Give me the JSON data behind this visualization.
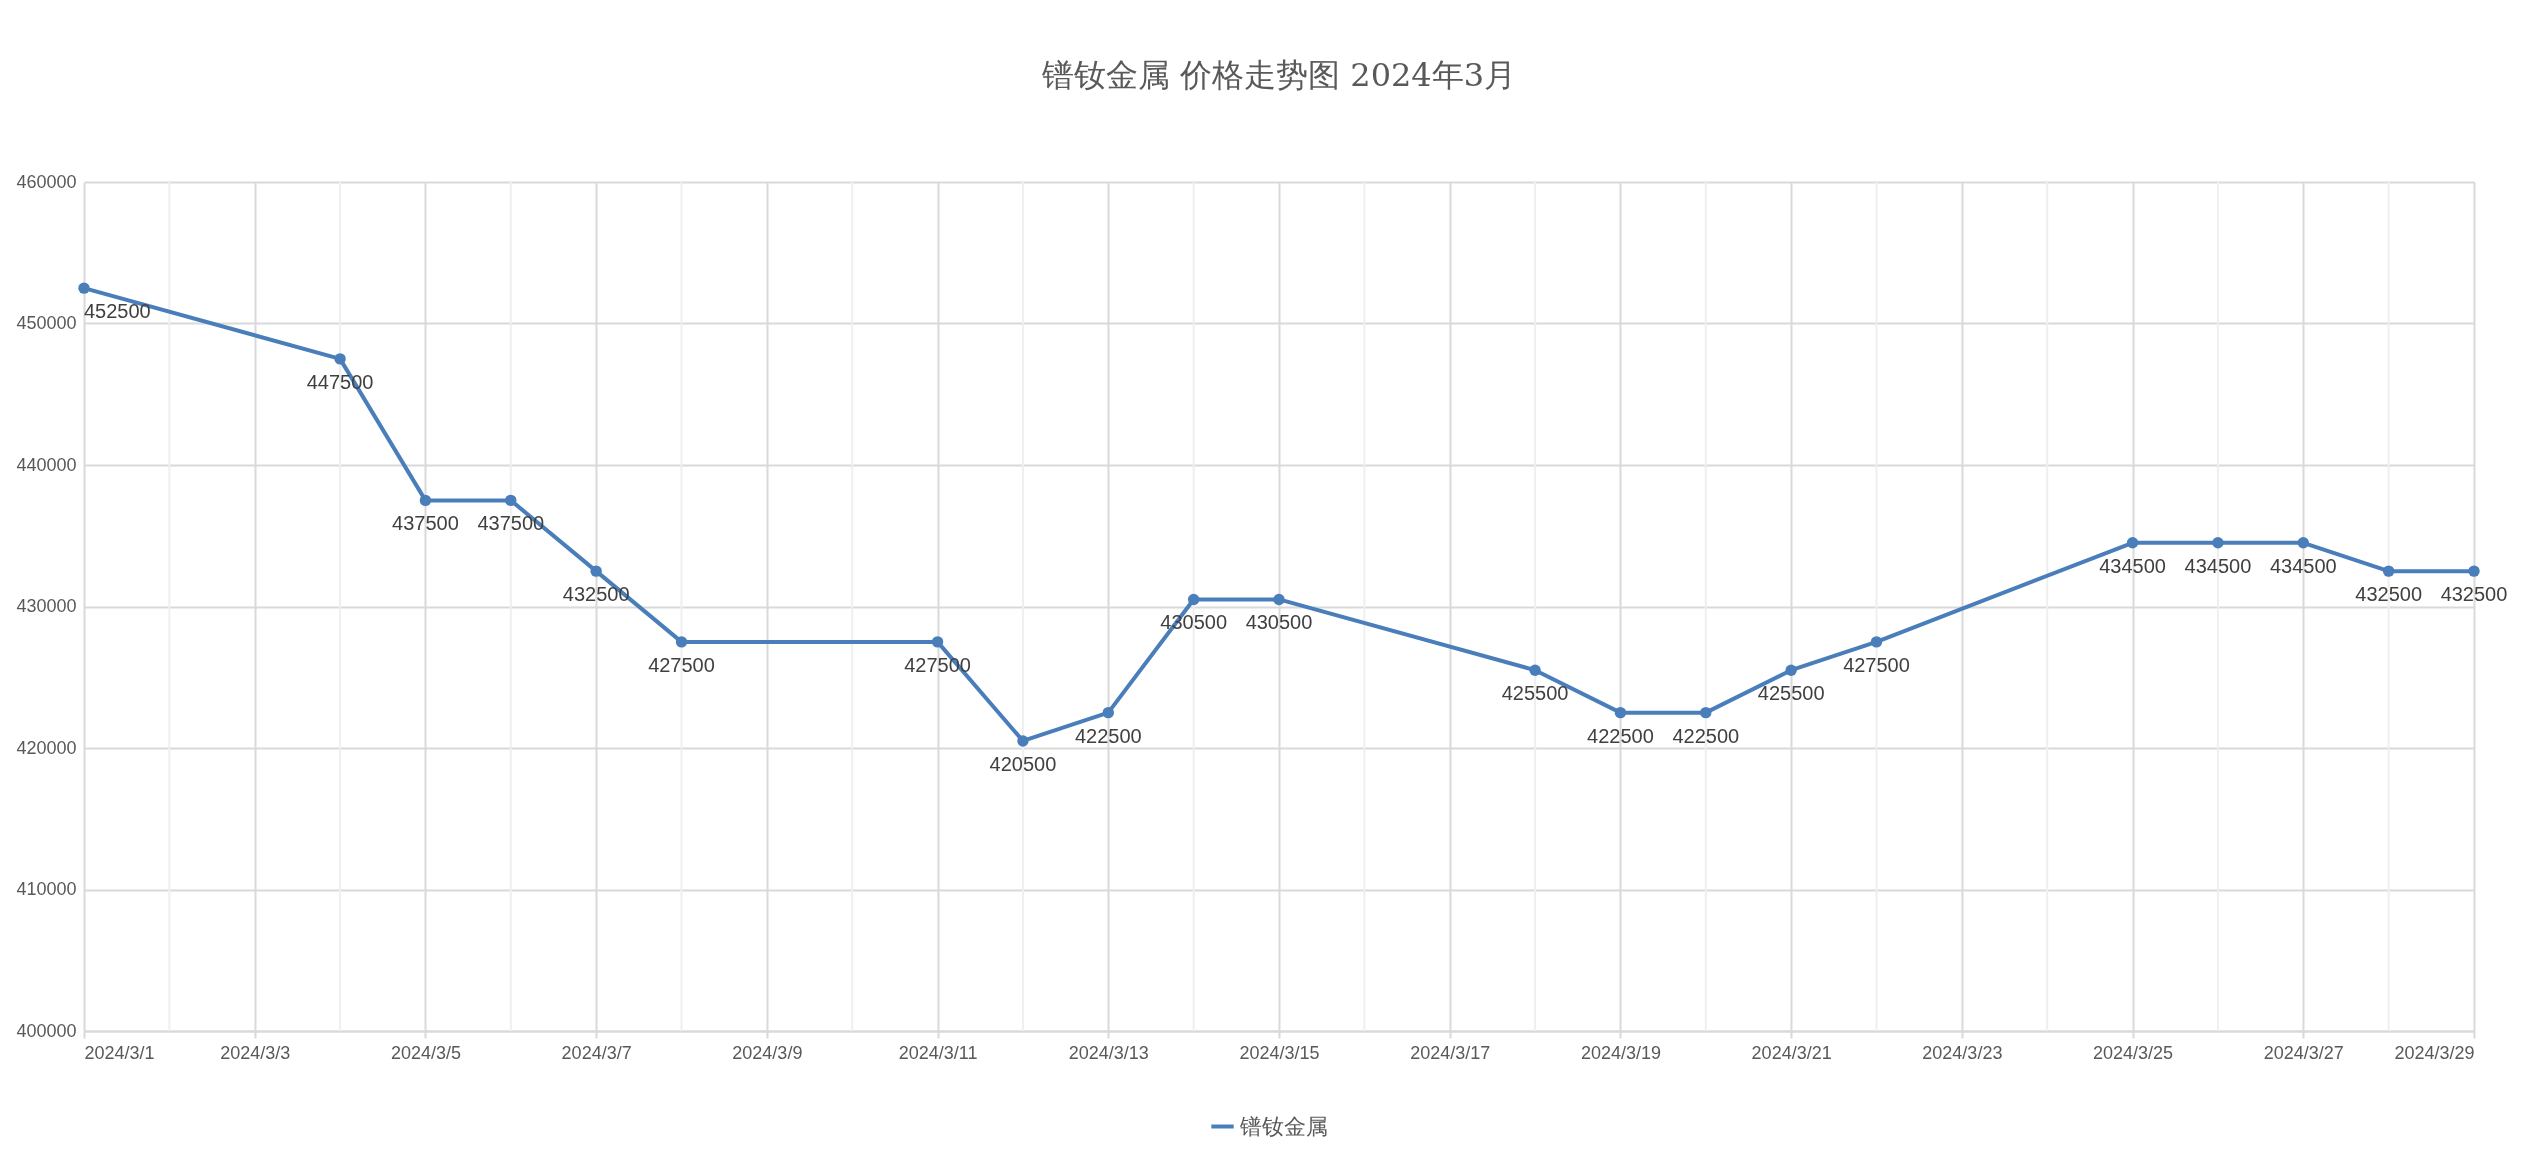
{
  "chart_data": {
    "type": "line",
    "title": "镨钕金属 价格走势图 2024年3月",
    "x": [
      "2024-03-01",
      "2024-03-04",
      "2024-03-05",
      "2024-03-06",
      "2024-03-07",
      "2024-03-08",
      "2024-03-11",
      "2024-03-12",
      "2024-03-13",
      "2024-03-14",
      "2024-03-15",
      "2024-03-18",
      "2024-03-19",
      "2024-03-20",
      "2024-03-21",
      "2024-03-22",
      "2024-03-25",
      "2024-03-26",
      "2024-03-27",
      "2024-03-28",
      "2024-03-29"
    ],
    "series": [
      {
        "name": "镨钕金属",
        "color": "#4a7ebb",
        "values": [
          452500,
          447500,
          437500,
          437500,
          432500,
          427500,
          427500,
          420500,
          422500,
          430500,
          430500,
          425500,
          422500,
          422500,
          425500,
          427500,
          434500,
          434500,
          434500,
          432500,
          432500
        ]
      }
    ],
    "xlim": [
      "2024-03-01",
      "2024-03-29"
    ],
    "xticks": [
      {
        "value": "2024-03-01",
        "label": "2024/3/1"
      },
      {
        "value": "2024-03-02",
        "label": null
      },
      {
        "value": "2024-03-03",
        "label": "2024/3/3"
      },
      {
        "value": "2024-03-04",
        "label": null
      },
      {
        "value": "2024-03-05",
        "label": "2024/3/5"
      },
      {
        "value": "2024-03-06",
        "label": null
      },
      {
        "value": "2024-03-07",
        "label": "2024/3/7"
      },
      {
        "value": "2024-03-08",
        "label": null
      },
      {
        "value": "2024-03-09",
        "label": "2024/3/9"
      },
      {
        "value": "2024-03-10",
        "label": null
      },
      {
        "value": "2024-03-11",
        "label": "2024/3/11"
      },
      {
        "value": "2024-03-12",
        "label": null
      },
      {
        "value": "2024-03-13",
        "label": "2024/3/13"
      },
      {
        "value": "2024-03-14",
        "label": null
      },
      {
        "value": "2024-03-15",
        "label": "2024/3/15"
      },
      {
        "value": "2024-03-16",
        "label": null
      },
      {
        "value": "2024-03-17",
        "label": "2024/3/17"
      },
      {
        "value": "2024-03-18",
        "label": null
      },
      {
        "value": "2024-03-19",
        "label": "2024/3/19"
      },
      {
        "value": "2024-03-20",
        "label": null
      },
      {
        "value": "2024-03-21",
        "label": "2024/3/21"
      },
      {
        "value": "2024-03-22",
        "label": null
      },
      {
        "value": "2024-03-23",
        "label": "2024/3/23"
      },
      {
        "value": "2024-03-24",
        "label": null
      },
      {
        "value": "2024-03-25",
        "label": "2024/3/25"
      },
      {
        "value": "2024-03-26",
        "label": null
      },
      {
        "value": "2024-03-27",
        "label": "2024/3/27"
      },
      {
        "value": "2024-03-28",
        "label": null
      },
      {
        "value": "2024-03-29",
        "label": "2024/3/29"
      }
    ],
    "ylim": [
      400000,
      460000
    ],
    "yticks": [
      400000,
      410000,
      420000,
      430000,
      440000,
      450000,
      460000
    ],
    "grid": true,
    "legend": "bottom",
    "marker": "circle",
    "line_style": "solid",
    "data_labels": true
  }
}
